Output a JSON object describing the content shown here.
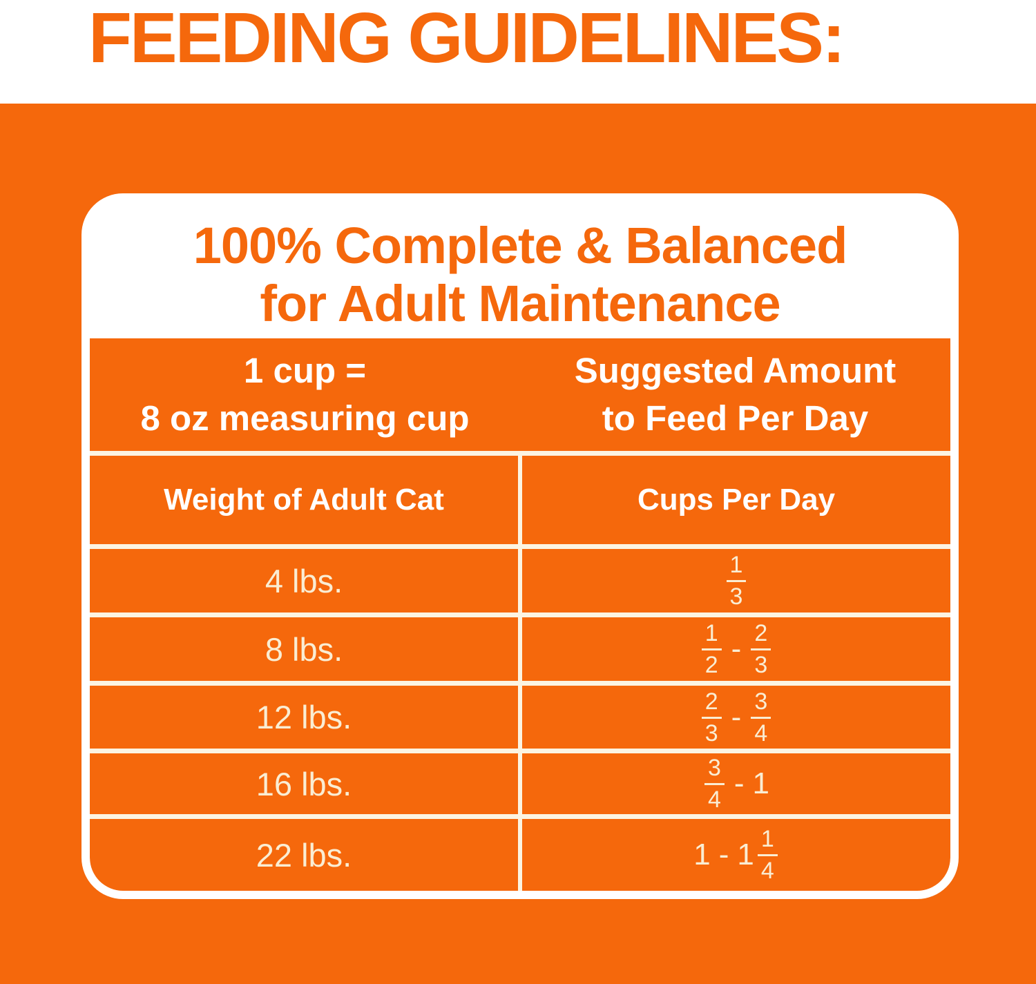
{
  "page_title": "FEEDING GUIDELINES:",
  "card": {
    "heading_line1": "100% Complete & Balanced",
    "heading_line2": "for Adult Maintenance",
    "header_band": {
      "left_line1": "1 cup =",
      "left_line2": "8 oz measuring cup",
      "right_line1": "Suggested Amount",
      "right_line2": "to Feed Per Day"
    }
  },
  "table": {
    "columns": [
      "Weight of Adult Cat",
      "Cups Per Day"
    ],
    "rows": [
      {
        "weight": "4 lbs.",
        "cups_text": "1/3",
        "cups_tokens": [
          "1/3"
        ]
      },
      {
        "weight": "8 lbs.",
        "cups_text": "1/2 - 2/3",
        "cups_tokens": [
          "1/2",
          "-",
          "2/3"
        ]
      },
      {
        "weight": "12 lbs.",
        "cups_text": "2/3 - 3/4",
        "cups_tokens": [
          "2/3",
          "-",
          "3/4"
        ]
      },
      {
        "weight": "16 lbs.",
        "cups_text": "3/4 - 1",
        "cups_tokens": [
          "3/4",
          "-",
          "1"
        ]
      },
      {
        "weight": "22 lbs.",
        "cups_text": "1 - 1 1/4",
        "cups_tokens": [
          "1",
          "-",
          "1&1/4"
        ]
      }
    ]
  },
  "colors": {
    "orange": "#F5680C",
    "white": "#FFFFFF",
    "cream_text": "#FAEDD3",
    "divider_cream": "#FCF4E2"
  }
}
